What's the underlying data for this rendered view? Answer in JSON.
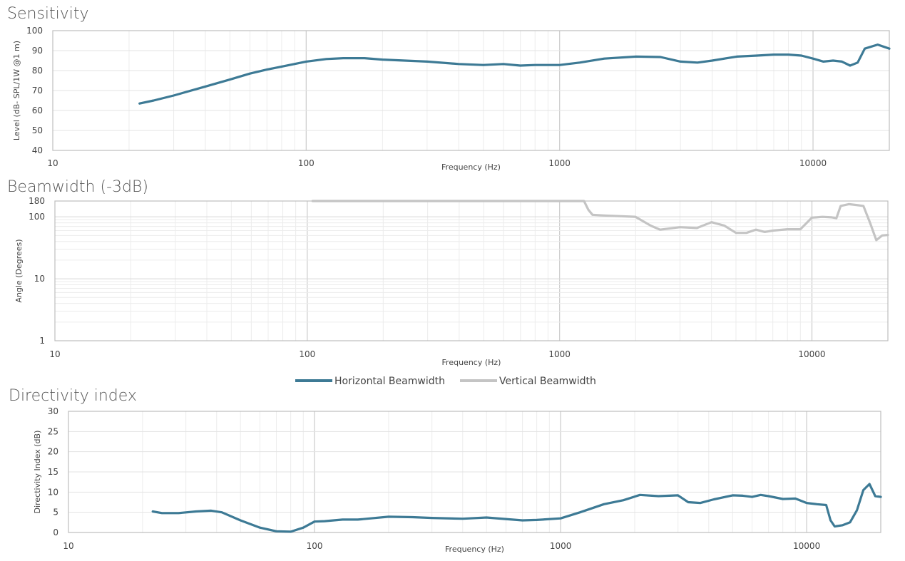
{
  "chart_data": [
    {
      "type": "line",
      "title": "Sensitivity",
      "xlabel": "Frequency (Hz)",
      "ylabel": "Level (dB- SPL/1W @1 m)",
      "xscale": "log",
      "xlim": [
        10,
        20000
      ],
      "ylim": [
        40,
        100
      ],
      "xticks": [
        "10",
        "100",
        "1000",
        "10000"
      ],
      "yticks": [
        "40",
        "50",
        "60",
        "70",
        "80",
        "90",
        "100"
      ],
      "grid": true,
      "series": [
        {
          "color": "#3d7a95",
          "x": [
            22,
            25,
            30,
            40,
            50,
            60,
            70,
            80,
            100,
            120,
            140,
            170,
            200,
            300,
            400,
            500,
            600,
            700,
            800,
            1000,
            1200,
            1500,
            2000,
            2500,
            3000,
            3500,
            4000,
            5000,
            6000,
            7000,
            8000,
            9000,
            10000,
            11000,
            12000,
            13000,
            14000,
            15000,
            16000,
            18000,
            20000
          ],
          "y": [
            63.5,
            65,
            67.5,
            72,
            75.5,
            78.5,
            80.5,
            82,
            84.5,
            85.8,
            86.2,
            86.2,
            85.5,
            84.5,
            83.3,
            82.8,
            83.3,
            82.5,
            82.8,
            82.8,
            84,
            86,
            87,
            86.8,
            84.5,
            84,
            85,
            87,
            87.5,
            88,
            88,
            87.5,
            86,
            84.5,
            85,
            84.5,
            82.5,
            84,
            91,
            93,
            91
          ]
        }
      ]
    },
    {
      "type": "line",
      "title": "Beamwidth (-3dB)",
      "xlabel": "Frequency (Hz)",
      "ylabel": "Angle (Degrees)",
      "xscale": "log",
      "yscale": "log",
      "xlim": [
        10,
        20000
      ],
      "ylim": [
        1,
        180
      ],
      "xticks": [
        "10",
        "100",
        "1000",
        "10000"
      ],
      "yticks": [
        "1",
        "10",
        "100",
        "180"
      ],
      "grid": true,
      "legend_position": "bottom-center",
      "series": [
        {
          "name": "Horizontal Beamwidth",
          "color": "#3d7a95",
          "x": [],
          "y": []
        },
        {
          "name": "Vertical Beamwidth",
          "color": "#c4c4c4",
          "x": [
            105,
            200,
            500,
            1000,
            1250,
            1300,
            1350,
            1500,
            2000,
            2300,
            2500,
            3000,
            3500,
            4000,
            4500,
            5000,
            5500,
            6000,
            6500,
            7000,
            8000,
            9000,
            10000,
            11000,
            12000,
            12500,
            13000,
            14000,
            15000,
            16000,
            17000,
            18000,
            19000,
            20000
          ],
          "y": [
            180,
            180,
            180,
            180,
            180,
            130,
            108,
            105,
            100,
            72,
            62,
            68,
            66,
            82,
            72,
            55,
            55,
            62,
            57,
            60,
            63,
            63,
            97,
            100,
            98,
            95,
            150,
            160,
            155,
            150,
            80,
            42,
            50,
            51
          ]
        }
      ]
    },
    {
      "type": "line",
      "title": "Directivity index",
      "xlabel": "Frequency (Hz)",
      "ylabel": "Directivity Index (dB)",
      "xscale": "log",
      "xlim": [
        10,
        20000
      ],
      "ylim": [
        0,
        30
      ],
      "xticks": [
        "10",
        "100",
        "1000",
        "10000"
      ],
      "yticks": [
        "0",
        "5",
        "10",
        "15",
        "20",
        "25",
        "30"
      ],
      "grid": true,
      "series": [
        {
          "color": "#3d7a95",
          "x": [
            22,
            24,
            28,
            33,
            38,
            42,
            50,
            60,
            70,
            80,
            90,
            100,
            110,
            130,
            150,
            200,
            250,
            300,
            400,
            500,
            700,
            800,
            1000,
            1200,
            1500,
            1800,
            2100,
            2500,
            3000,
            3300,
            3700,
            4200,
            5000,
            5500,
            6000,
            6500,
            7000,
            8000,
            9000,
            10000,
            11000,
            12000,
            12500,
            13000,
            14000,
            15000,
            16000,
            17000,
            18000,
            19000,
            20000
          ],
          "y": [
            5.2,
            4.8,
            4.8,
            5.2,
            5.4,
            5.0,
            3.0,
            1.2,
            0.3,
            0.2,
            1.2,
            2.7,
            2.8,
            3.2,
            3.2,
            3.9,
            3.8,
            3.6,
            3.4,
            3.7,
            3.0,
            3.1,
            3.5,
            5.0,
            7.0,
            8.0,
            9.3,
            9.0,
            9.2,
            7.5,
            7.3,
            8.2,
            9.2,
            9.1,
            8.8,
            9.3,
            9.0,
            8.3,
            8.4,
            7.3,
            7.0,
            6.8,
            3.0,
            1.5,
            1.8,
            2.5,
            5.5,
            10.5,
            12.0,
            9.0,
            8.8
          ]
        }
      ]
    }
  ]
}
